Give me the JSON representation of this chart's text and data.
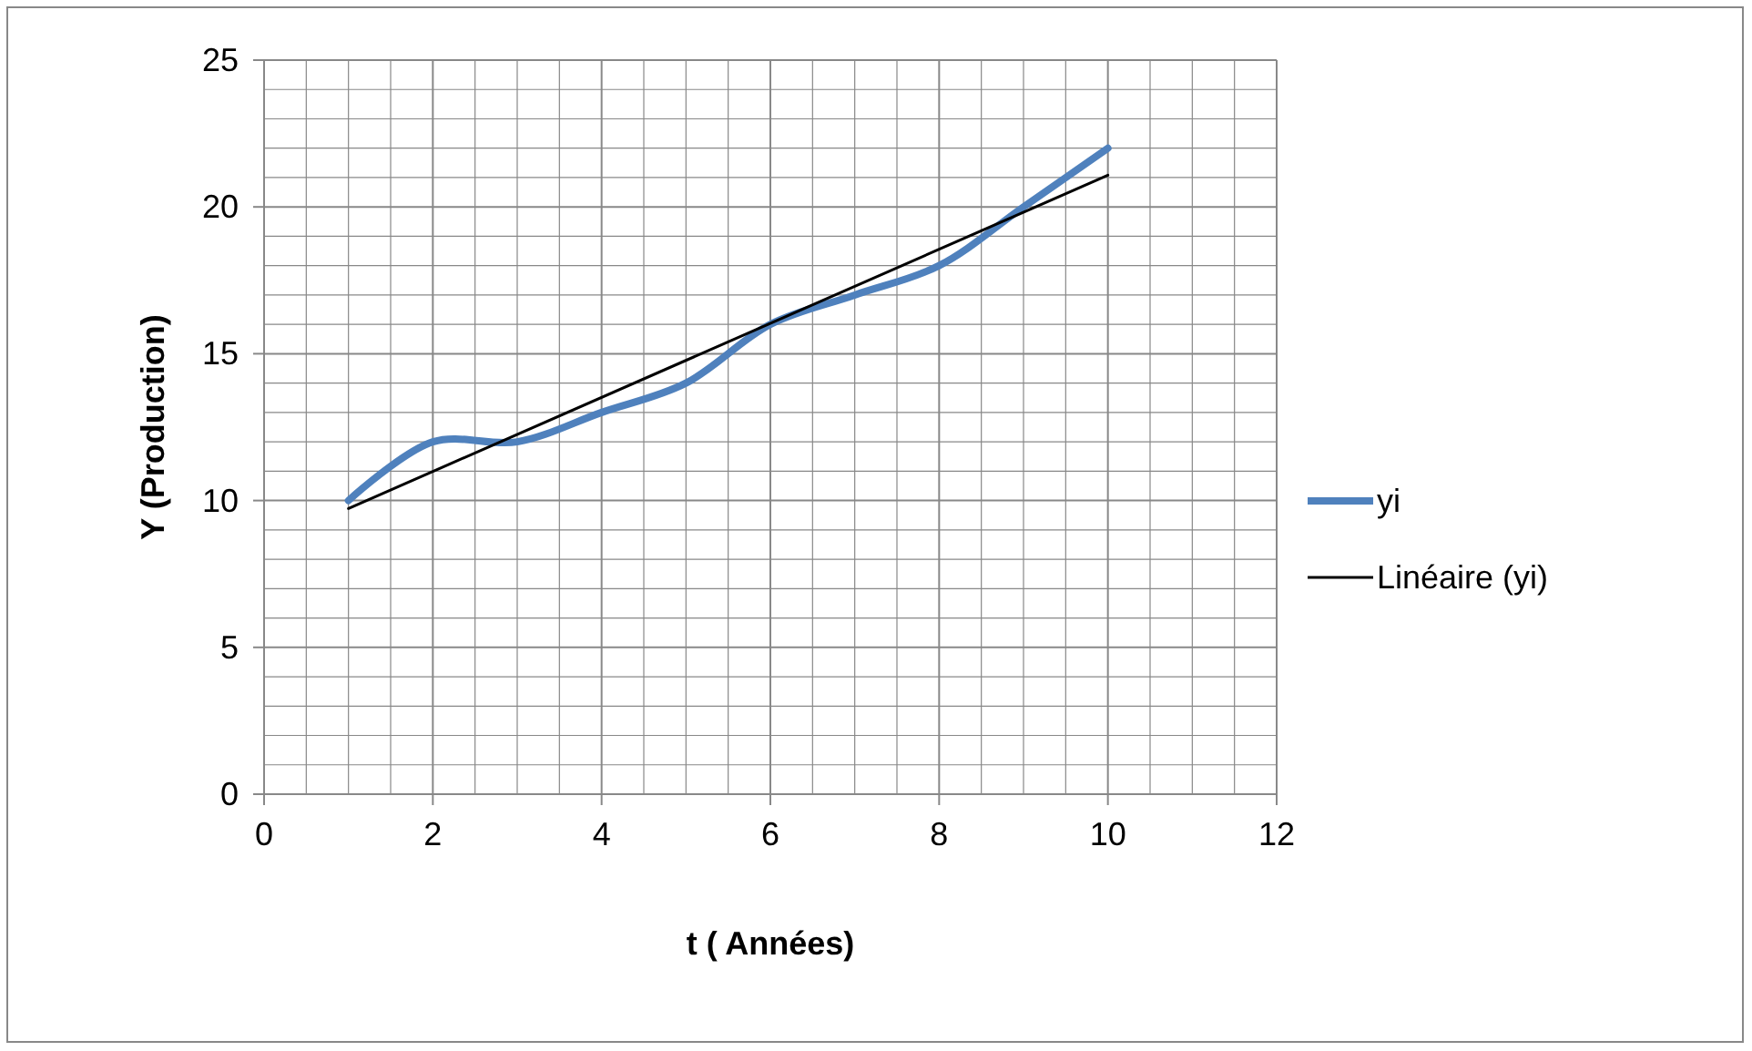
{
  "chart_data": {
    "type": "line",
    "xlabel": "t ( Années)",
    "ylabel": "Y (Production)",
    "xlim": [
      0,
      12
    ],
    "ylim": [
      0,
      25
    ],
    "xticks": [
      0,
      {
        "value": 0.5,
        "label": null
      },
      {
        "value": 1,
        "label": null
      },
      {
        "value": 1.5,
        "label": null
      },
      2,
      {
        "value": 2.5,
        "label": null
      },
      {
        "value": 3,
        "label": null
      },
      {
        "value": 3.5,
        "label": null
      },
      4,
      {
        "value": 4.5,
        "label": null
      },
      {
        "value": 5,
        "label": null
      },
      {
        "value": 5.5,
        "label": null
      },
      6,
      {
        "value": 6.5,
        "label": null
      },
      {
        "value": 7,
        "label": null
      },
      {
        "value": 7.5,
        "label": null
      },
      8,
      {
        "value": 8.5,
        "label": null
      },
      {
        "value": 9,
        "label": null
      },
      {
        "value": 9.5,
        "label": null
      },
      10,
      {
        "value": 10.5,
        "label": null
      },
      {
        "value": 11,
        "label": null
      },
      {
        "value": 11.5,
        "label": null
      },
      12
    ],
    "yticks": [
      0,
      {
        "value": 1,
        "label": null
      },
      {
        "value": 2,
        "label": null
      },
      {
        "value": 3,
        "label": null
      },
      {
        "value": 4,
        "label": null
      },
      5,
      {
        "value": 6,
        "label": null
      },
      {
        "value": 7,
        "label": null
      },
      {
        "value": 8,
        "label": null
      },
      {
        "value": 9,
        "label": null
      },
      10,
      {
        "value": 11,
        "label": null
      },
      {
        "value": 12,
        "label": null
      },
      {
        "value": 13,
        "label": null
      },
      {
        "value": 14,
        "label": null
      },
      15,
      {
        "value": 16,
        "label": null
      },
      {
        "value": 17,
        "label": null
      },
      {
        "value": 18,
        "label": null
      },
      {
        "value": 19,
        "label": null
      },
      20,
      {
        "value": 21,
        "label": null
      },
      {
        "value": 22,
        "label": null
      },
      {
        "value": 23,
        "label": null
      },
      {
        "value": 24,
        "label": null
      },
      25
    ],
    "grid": true,
    "legend": "right",
    "marker": "none",
    "series": [
      {
        "name": "yi",
        "color": "#4f81bd",
        "x": [
          1,
          2,
          3,
          4,
          5,
          6,
          7,
          8,
          9,
          10
        ],
        "values": [
          10,
          12,
          12,
          13,
          14,
          16,
          17,
          18,
          20,
          22
        ]
      },
      {
        "name": "Linéaire (yi)",
        "color": "#000000",
        "x": [
          1,
          10
        ],
        "values": [
          9.73,
          21.08
        ]
      }
    ]
  }
}
